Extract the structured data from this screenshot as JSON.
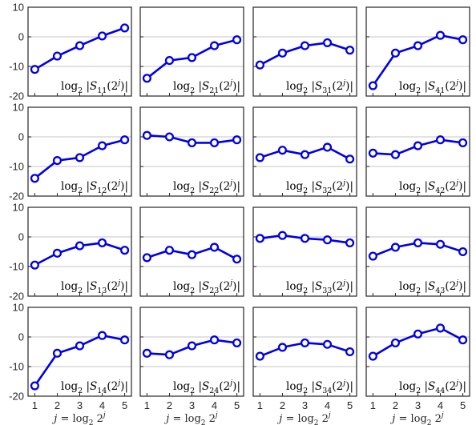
{
  "figure": {
    "x_tick_labels": [
      "1",
      "2",
      "3",
      "4",
      "5"
    ],
    "y_tick_labels": [
      "10",
      "0",
      "-10",
      "-20"
    ],
    "xlabel_parts": {
      "j": "j",
      "eq": " = log",
      "sub": "2",
      "base": " 2",
      "sup": "j"
    }
  },
  "chart_data": [
    {
      "type": "line",
      "panel_id": "S11",
      "label_parts": [
        "log",
        "2",
        " |",
        "S",
        "11",
        "(2",
        "j",
        ")|"
      ],
      "x": [
        1,
        2,
        3,
        4,
        5
      ],
      "series": [
        {
          "values": [
            -11,
            -6.5,
            -3,
            0.3,
            3
          ]
        }
      ],
      "xlim": [
        0.7,
        5.3
      ],
      "ylim": [
        -20,
        10
      ],
      "grid": "y"
    },
    {
      "type": "line",
      "panel_id": "S21",
      "label_parts": [
        "log",
        "2",
        " |",
        "S",
        "21",
        "(2",
        "j",
        ")|"
      ],
      "x": [
        1,
        2,
        3,
        4,
        5
      ],
      "series": [
        {
          "values": [
            -14,
            -8,
            -7,
            -3,
            -1
          ]
        }
      ],
      "xlim": [
        0.7,
        5.3
      ],
      "ylim": [
        -20,
        10
      ],
      "grid": "y"
    },
    {
      "type": "line",
      "panel_id": "S31",
      "label_parts": [
        "log",
        "2",
        " |",
        "S",
        "31",
        "(2",
        "j",
        ")|"
      ],
      "x": [
        1,
        2,
        3,
        4,
        5
      ],
      "series": [
        {
          "values": [
            -9.5,
            -5.5,
            -3,
            -2,
            -4.5
          ]
        }
      ],
      "xlim": [
        0.7,
        5.3
      ],
      "ylim": [
        -20,
        10
      ],
      "grid": "y"
    },
    {
      "type": "line",
      "panel_id": "S41",
      "label_parts": [
        "log",
        "2",
        " |",
        "S",
        "41",
        "(2",
        "j",
        ")|"
      ],
      "x": [
        1,
        2,
        3,
        4,
        5
      ],
      "series": [
        {
          "values": [
            -16.5,
            -5.5,
            -3,
            0.5,
            -1
          ]
        }
      ],
      "xlim": [
        0.7,
        5.3
      ],
      "ylim": [
        -20,
        10
      ],
      "grid": "y"
    },
    {
      "type": "line",
      "panel_id": "S12",
      "label_parts": [
        "log",
        "2",
        " |",
        "S",
        "12",
        "(2",
        "j",
        ")|"
      ],
      "x": [
        1,
        2,
        3,
        4,
        5
      ],
      "series": [
        {
          "values": [
            -14,
            -8,
            -7,
            -3,
            -1
          ]
        }
      ],
      "xlim": [
        0.7,
        5.3
      ],
      "ylim": [
        -20,
        10
      ],
      "grid": "y"
    },
    {
      "type": "line",
      "panel_id": "S22",
      "label_parts": [
        "log",
        "2",
        " |",
        "S",
        "22",
        "(2",
        "j",
        ")|"
      ],
      "x": [
        1,
        2,
        3,
        4,
        5
      ],
      "series": [
        {
          "values": [
            0.5,
            0,
            -2,
            -2,
            -1
          ]
        }
      ],
      "xlim": [
        0.7,
        5.3
      ],
      "ylim": [
        -20,
        10
      ],
      "grid": "y"
    },
    {
      "type": "line",
      "panel_id": "S32",
      "label_parts": [
        "log",
        "2",
        " |",
        "S",
        "32",
        "(2",
        "j",
        ")|"
      ],
      "x": [
        1,
        2,
        3,
        4,
        5
      ],
      "series": [
        {
          "values": [
            -7,
            -4.5,
            -6,
            -3.5,
            -7.5
          ]
        }
      ],
      "xlim": [
        0.7,
        5.3
      ],
      "ylim": [
        -20,
        10
      ],
      "grid": "y"
    },
    {
      "type": "line",
      "panel_id": "S42",
      "label_parts": [
        "log",
        "2",
        " |",
        "S",
        "42",
        "(2",
        "j",
        ")|"
      ],
      "x": [
        1,
        2,
        3,
        4,
        5
      ],
      "series": [
        {
          "values": [
            -5.5,
            -6,
            -3,
            -1,
            -2
          ]
        }
      ],
      "xlim": [
        0.7,
        5.3
      ],
      "ylim": [
        -20,
        10
      ],
      "grid": "y"
    },
    {
      "type": "line",
      "panel_id": "S13",
      "label_parts": [
        "log",
        "2",
        " |",
        "S",
        "13",
        "(2",
        "j",
        ")|"
      ],
      "x": [
        1,
        2,
        3,
        4,
        5
      ],
      "series": [
        {
          "values": [
            -9.5,
            -5.5,
            -3,
            -2,
            -4.5
          ]
        }
      ],
      "xlim": [
        0.7,
        5.3
      ],
      "ylim": [
        -20,
        10
      ],
      "grid": "y"
    },
    {
      "type": "line",
      "panel_id": "S23",
      "label_parts": [
        "log",
        "2",
        " |",
        "S",
        "23",
        "(2",
        "j",
        ")|"
      ],
      "x": [
        1,
        2,
        3,
        4,
        5
      ],
      "series": [
        {
          "values": [
            -7,
            -4.5,
            -6,
            -3.5,
            -7.5
          ]
        }
      ],
      "xlim": [
        0.7,
        5.3
      ],
      "ylim": [
        -20,
        10
      ],
      "grid": "y"
    },
    {
      "type": "line",
      "panel_id": "S33",
      "label_parts": [
        "log",
        "2",
        " |",
        "S",
        "33",
        "(2",
        "j",
        ")|"
      ],
      "x": [
        1,
        2,
        3,
        4,
        5
      ],
      "series": [
        {
          "values": [
            -0.5,
            0.5,
            -0.5,
            -1,
            -2
          ]
        }
      ],
      "xlim": [
        0.7,
        5.3
      ],
      "ylim": [
        -20,
        10
      ],
      "grid": "y"
    },
    {
      "type": "line",
      "panel_id": "S43",
      "label_parts": [
        "log",
        "2",
        " |",
        "S",
        "43",
        "(2",
        "j",
        ")|"
      ],
      "x": [
        1,
        2,
        3,
        4,
        5
      ],
      "series": [
        {
          "values": [
            -6.5,
            -3.5,
            -2,
            -2.5,
            -5
          ]
        }
      ],
      "xlim": [
        0.7,
        5.3
      ],
      "ylim": [
        -20,
        10
      ],
      "grid": "y"
    },
    {
      "type": "line",
      "panel_id": "S14",
      "label_parts": [
        "log",
        "2",
        " |",
        "S",
        "14",
        "(2",
        "j",
        ")|"
      ],
      "x": [
        1,
        2,
        3,
        4,
        5
      ],
      "series": [
        {
          "values": [
            -16.5,
            -5.5,
            -3,
            0.5,
            -1
          ]
        }
      ],
      "xlim": [
        0.7,
        5.3
      ],
      "ylim": [
        -20,
        10
      ],
      "grid": "y"
    },
    {
      "type": "line",
      "panel_id": "S24",
      "label_parts": [
        "log",
        "2",
        " |",
        "S",
        "24",
        "(2",
        "j",
        ")|"
      ],
      "x": [
        1,
        2,
        3,
        4,
        5
      ],
      "series": [
        {
          "values": [
            -5.5,
            -6,
            -3,
            -1,
            -2
          ]
        }
      ],
      "xlim": [
        0.7,
        5.3
      ],
      "ylim": [
        -20,
        10
      ],
      "grid": "y"
    },
    {
      "type": "line",
      "panel_id": "S34",
      "label_parts": [
        "log",
        "2",
        " |",
        "S",
        "34",
        "(2",
        "j",
        ")|"
      ],
      "x": [
        1,
        2,
        3,
        4,
        5
      ],
      "series": [
        {
          "values": [
            -6.5,
            -3.5,
            -2,
            -2.5,
            -5
          ]
        }
      ],
      "xlim": [
        0.7,
        5.3
      ],
      "ylim": [
        -20,
        10
      ],
      "grid": "y"
    },
    {
      "type": "line",
      "panel_id": "S44",
      "label_parts": [
        "log",
        "2",
        " |",
        "S",
        "44",
        "(2",
        "j",
        ")|"
      ],
      "x": [
        1,
        2,
        3,
        4,
        5
      ],
      "series": [
        {
          "values": [
            -6.5,
            -2,
            1,
            3,
            -1
          ]
        }
      ],
      "xlim": [
        0.7,
        5.3
      ],
      "ylim": [
        -20,
        10
      ],
      "grid": "y"
    }
  ],
  "colors": {
    "line": "#0000e6",
    "grid": "#d9d9d9",
    "axis": "#262626"
  }
}
